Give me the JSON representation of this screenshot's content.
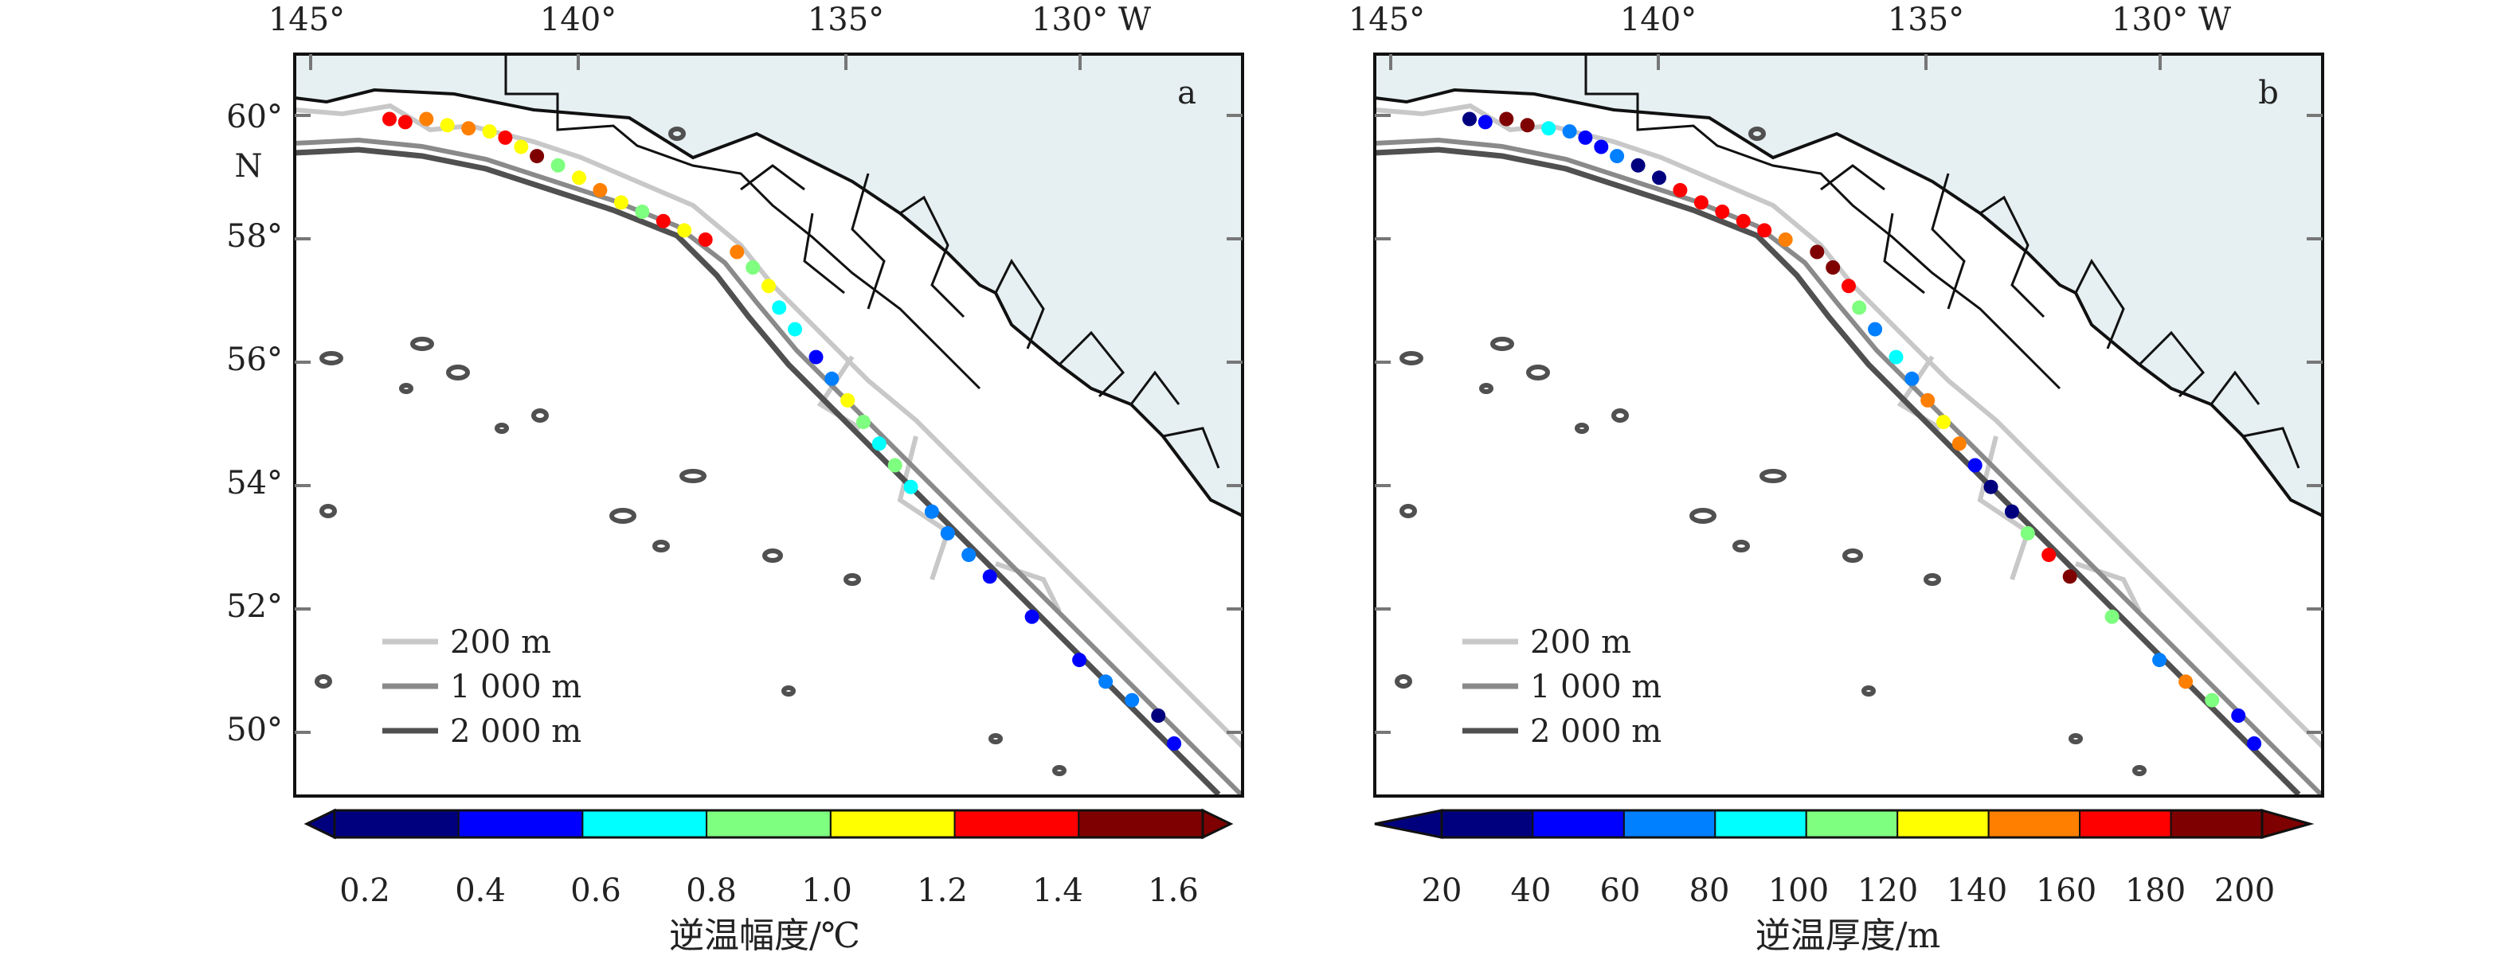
{
  "panels": [
    {
      "id": "a",
      "label": "a",
      "lon_ticks": [
        "145°",
        "140°",
        "135°",
        "130° W"
      ],
      "lat_ticks": [
        "60°",
        "58°",
        "56°",
        "54°",
        "52°",
        "50°"
      ],
      "lat_hemisphere": "N",
      "legend": [
        {
          "label": "200 m",
          "color": "#c8c8c8"
        },
        {
          "label": "1 000 m",
          "color": "#8a8a8a"
        },
        {
          "label": "2 000 m",
          "color": "#505050"
        }
      ],
      "colorbar": {
        "ticks": [
          "0.2",
          "0.4",
          "0.6",
          "0.8",
          "1.0",
          "1.2",
          "1.4",
          "1.6"
        ],
        "title": "逆温幅度/℃"
      }
    },
    {
      "id": "b",
      "label": "b",
      "lon_ticks": [
        "145°",
        "140°",
        "135°",
        "130° W"
      ],
      "lat_ticks": [
        "60°",
        "58°",
        "56°",
        "54°",
        "52°",
        "50°"
      ],
      "lat_hemisphere": "",
      "legend": [
        {
          "label": "200 m",
          "color": "#c8c8c8"
        },
        {
          "label": "1 000 m",
          "color": "#8a8a8a"
        },
        {
          "label": "2 000 m",
          "color": "#505050"
        }
      ],
      "colorbar": {
        "ticks": [
          "20",
          "40",
          "60",
          "80",
          "100",
          "120",
          "140",
          "160",
          "180",
          "200"
        ],
        "title": "逆温厚度/m"
      }
    }
  ],
  "colors": {
    "land": "#e6eff1",
    "ocean": "#ffffff",
    "coastline": "#111111",
    "border": "#111111",
    "isobath_200": "#c8c8c8",
    "isobath_1000": "#8a8a8a",
    "isobath_2000": "#505050",
    "jet": [
      "#00007f",
      "#0000ff",
      "#007fff",
      "#00ffff",
      "#7fff7f",
      "#ffff00",
      "#ff7f00",
      "#ff0000",
      "#7f0000"
    ]
  },
  "map_data": {
    "lon_range": [
      -146,
      -128
    ],
    "lat_range": [
      49,
      61
    ],
    "observations": [
      {
        "lon": -144.2,
        "lat": 59.95,
        "a": 1.5,
        "b": 30
      },
      {
        "lon": -143.9,
        "lat": 59.9,
        "a": 1.4,
        "b": 40
      },
      {
        "lon": -143.5,
        "lat": 59.95,
        "a": 1.2,
        "b": 190
      },
      {
        "lon": -143.1,
        "lat": 59.85,
        "a": 1.1,
        "b": 195
      },
      {
        "lon": -142.7,
        "lat": 59.8,
        "a": 1.2,
        "b": 80
      },
      {
        "lon": -142.3,
        "lat": 59.75,
        "a": 1.0,
        "b": 60
      },
      {
        "lon": -142.0,
        "lat": 59.65,
        "a": 1.4,
        "b": 45
      },
      {
        "lon": -141.7,
        "lat": 59.5,
        "a": 1.1,
        "b": 35
      },
      {
        "lon": -141.4,
        "lat": 59.35,
        "a": 1.6,
        "b": 70
      },
      {
        "lon": -141.0,
        "lat": 59.2,
        "a": 0.9,
        "b": 30
      },
      {
        "lon": -140.6,
        "lat": 59.0,
        "a": 1.1,
        "b": 20
      },
      {
        "lon": -140.2,
        "lat": 58.8,
        "a": 1.3,
        "b": 175
      },
      {
        "lon": -139.8,
        "lat": 58.6,
        "a": 1.0,
        "b": 180
      },
      {
        "lon": -139.4,
        "lat": 58.45,
        "a": 0.9,
        "b": 170
      },
      {
        "lon": -139.0,
        "lat": 58.3,
        "a": 1.5,
        "b": 185
      },
      {
        "lon": -138.6,
        "lat": 58.15,
        "a": 1.0,
        "b": 175
      },
      {
        "lon": -138.2,
        "lat": 58.0,
        "a": 1.5,
        "b": 160
      },
      {
        "lon": -137.6,
        "lat": 57.8,
        "a": 1.3,
        "b": 190
      },
      {
        "lon": -137.3,
        "lat": 57.55,
        "a": 0.9,
        "b": 195
      },
      {
        "lon": -137.0,
        "lat": 57.25,
        "a": 1.1,
        "b": 185
      },
      {
        "lon": -136.8,
        "lat": 56.9,
        "a": 0.7,
        "b": 120
      },
      {
        "lon": -136.5,
        "lat": 56.55,
        "a": 0.7,
        "b": 70
      },
      {
        "lon": -136.1,
        "lat": 56.1,
        "a": 0.3,
        "b": 90
      },
      {
        "lon": -135.8,
        "lat": 55.75,
        "a": 0.6,
        "b": 60
      },
      {
        "lon": -135.5,
        "lat": 55.4,
        "a": 1.0,
        "b": 160
      },
      {
        "lon": -135.2,
        "lat": 55.05,
        "a": 0.9,
        "b": 140
      },
      {
        "lon": -134.9,
        "lat": 54.7,
        "a": 0.8,
        "b": 150
      },
      {
        "lon": -134.6,
        "lat": 54.35,
        "a": 0.9,
        "b": 40
      },
      {
        "lon": -134.3,
        "lat": 54.0,
        "a": 0.7,
        "b": 30
      },
      {
        "lon": -133.9,
        "lat": 53.6,
        "a": 0.5,
        "b": 20
      },
      {
        "lon": -133.6,
        "lat": 53.25,
        "a": 0.6,
        "b": 100
      },
      {
        "lon": -133.2,
        "lat": 52.9,
        "a": 0.5,
        "b": 175
      },
      {
        "lon": -132.8,
        "lat": 52.55,
        "a": 0.4,
        "b": 190
      },
      {
        "lon": -132.0,
        "lat": 51.9,
        "a": 0.3,
        "b": 110
      },
      {
        "lon": -131.1,
        "lat": 51.2,
        "a": 0.4,
        "b": 60
      },
      {
        "lon": -130.6,
        "lat": 50.85,
        "a": 0.5,
        "b": 145
      },
      {
        "lon": -130.1,
        "lat": 50.55,
        "a": 0.6,
        "b": 100
      },
      {
        "lon": -129.6,
        "lat": 50.3,
        "a": 0.2,
        "b": 40
      },
      {
        "lon": -129.3,
        "lat": 49.85,
        "a": 0.3,
        "b": 50
      }
    ]
  }
}
